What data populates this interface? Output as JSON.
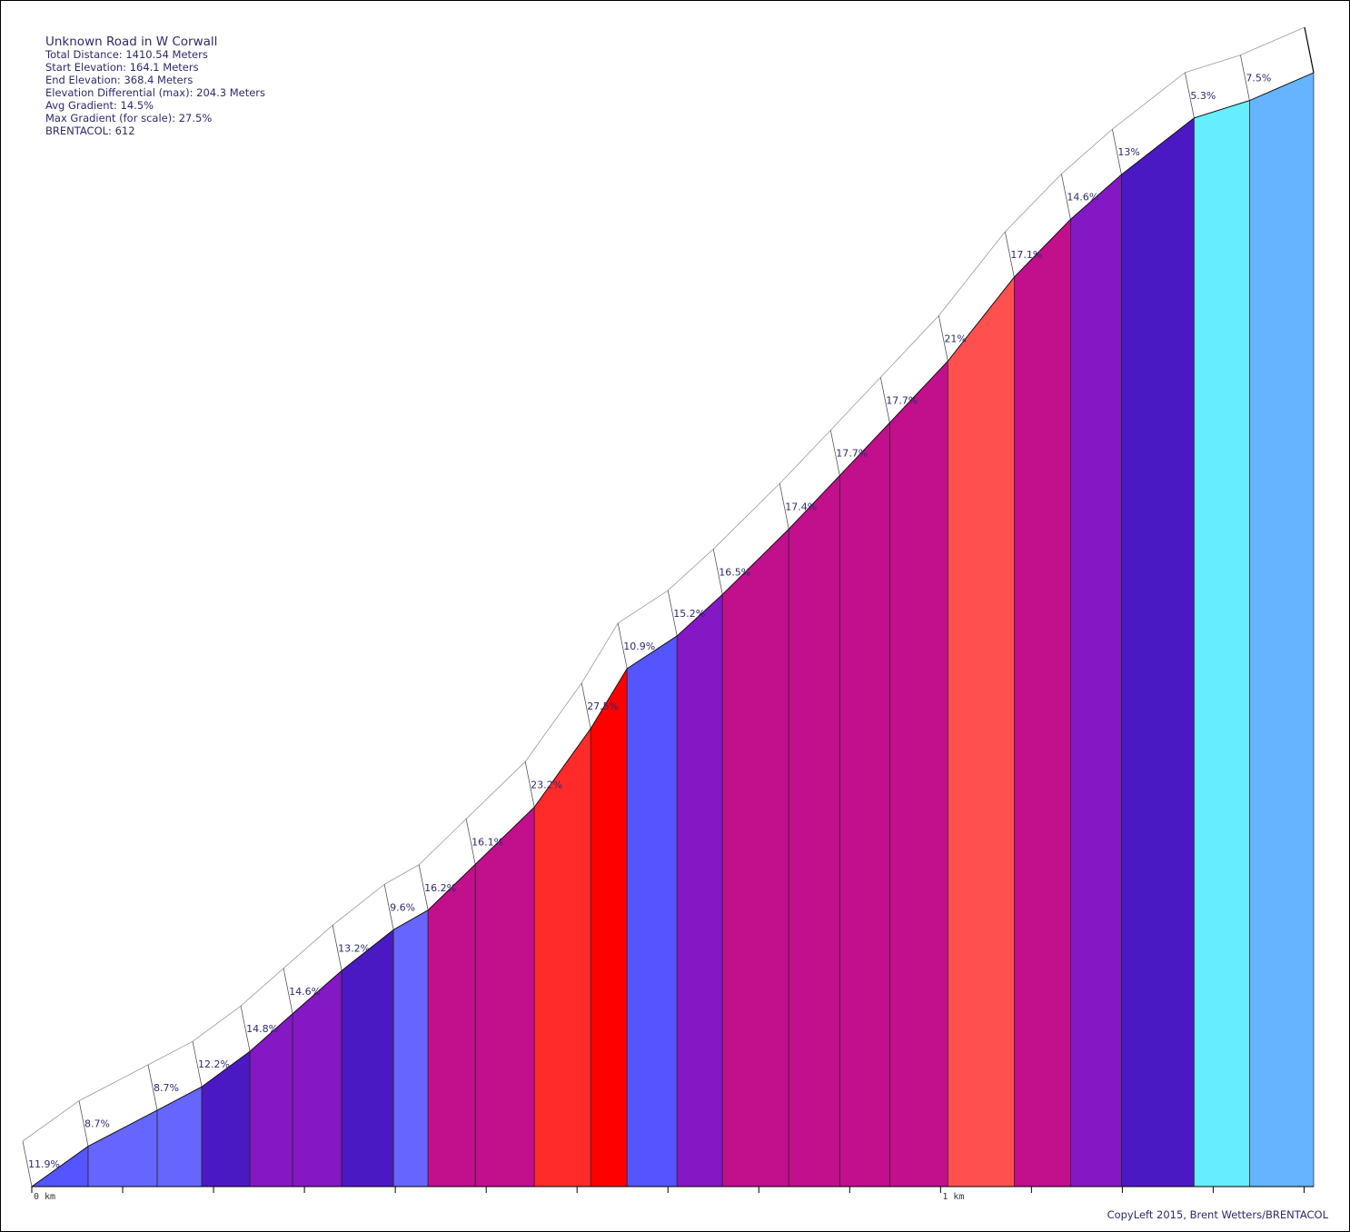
{
  "chart_data": {
    "type": "area",
    "title": "Unknown Road in W Corwall",
    "info_lines": [
      "Total Distance: 1410.54 Meters",
      "Start Elevation: 164.1 Meters",
      "End Elevation: 368.4 Meters",
      "Elevation Differential (max): 204.3 Meters",
      "Avg Gradient: 14.5%",
      "Max Gradient (for scale): 27.5%",
      "BRENTACOL: 612"
    ],
    "x_ticks": [
      0,
      100,
      200,
      300,
      400,
      500,
      600,
      700,
      800,
      900,
      1000,
      1100,
      1200,
      1300,
      1400
    ],
    "x_tick_labels": [
      {
        "value": 0,
        "label": "0 km"
      },
      {
        "value": 1000,
        "label": "1 km"
      }
    ],
    "x_unit": "meters",
    "elevation_start": 164.1,
    "elevation_end": 368.4,
    "segments": [
      {
        "start": 0,
        "end": 62,
        "gradient_label": "11.9%",
        "color": "#5555ff"
      },
      {
        "start": 62,
        "end": 138,
        "gradient_label": "8.7%",
        "color": "#6666ff"
      },
      {
        "start": 138,
        "end": 187,
        "gradient_label": "8.7%",
        "color": "#6666ff"
      },
      {
        "start": 187,
        "end": 240,
        "gradient_label": "12.2%",
        "color": "#4b19c3"
      },
      {
        "start": 240,
        "end": 287,
        "gradient_label": "14.8%",
        "color": "#8418c4"
      },
      {
        "start": 287,
        "end": 341,
        "gradient_label": "14.6%",
        "color": "#8418c4"
      },
      {
        "start": 341,
        "end": 398,
        "gradient_label": "13.2%",
        "color": "#4b19c3"
      },
      {
        "start": 398,
        "end": 436,
        "gradient_label": "9.6%",
        "color": "#6666ff"
      },
      {
        "start": 436,
        "end": 488,
        "gradient_label": "16.2%",
        "color": "#c20f8c"
      },
      {
        "start": 488,
        "end": 553,
        "gradient_label": "16.1%",
        "color": "#c20f8c"
      },
      {
        "start": 553,
        "end": 615,
        "gradient_label": "23.2%",
        "color": "#ff2a2a"
      },
      {
        "start": 615,
        "end": 655,
        "gradient_label": "27.5%",
        "color": "#ff0000"
      },
      {
        "start": 655,
        "end": 710,
        "gradient_label": "10.9%",
        "color": "#5555ff"
      },
      {
        "start": 710,
        "end": 760,
        "gradient_label": "15.2%",
        "color": "#8418c4"
      },
      {
        "start": 760,
        "end": 833,
        "gradient_label": "16.5%",
        "color": "#c20f8c"
      },
      {
        "start": 833,
        "end": 889,
        "gradient_label": "17.4%",
        "color": "#c20f8c"
      },
      {
        "start": 889,
        "end": 944,
        "gradient_label": "17.7%",
        "color": "#c20f8c"
      },
      {
        "start": 944,
        "end": 1008,
        "gradient_label": "17.7%",
        "color": "#c20f8c"
      },
      {
        "start": 1008,
        "end": 1081,
        "gradient_label": "21%",
        "color": "#ff5050"
      },
      {
        "start": 1081,
        "end": 1143,
        "gradient_label": "17.1%",
        "color": "#c20f8c"
      },
      {
        "start": 1143,
        "end": 1199,
        "gradient_label": "14.6%",
        "color": "#8418c4"
      },
      {
        "start": 1199,
        "end": 1279,
        "gradient_label": "13%",
        "color": "#4b19c3"
      },
      {
        "start": 1279,
        "end": 1340,
        "gradient_label": "5.3%",
        "color": "#66eeff"
      },
      {
        "start": 1340,
        "end": 1410.54,
        "gradient_label": "7.5%",
        "color": "#66b3ff"
      }
    ],
    "elevations": [
      164.1,
      171.5,
      178.1,
      182.4,
      188.9,
      195.8,
      203.7,
      211.2,
      214.8,
      223.2,
      233.7,
      248.1,
      259.1,
      265.1,
      272.7,
      284.7,
      294.5,
      304.2,
      315.5,
      330.9,
      341.5,
      349.7,
      360.1,
      363.3,
      368.4
    ],
    "copyright": "CopyLeft 2015, Brent Wetters/BRENTACOL"
  }
}
